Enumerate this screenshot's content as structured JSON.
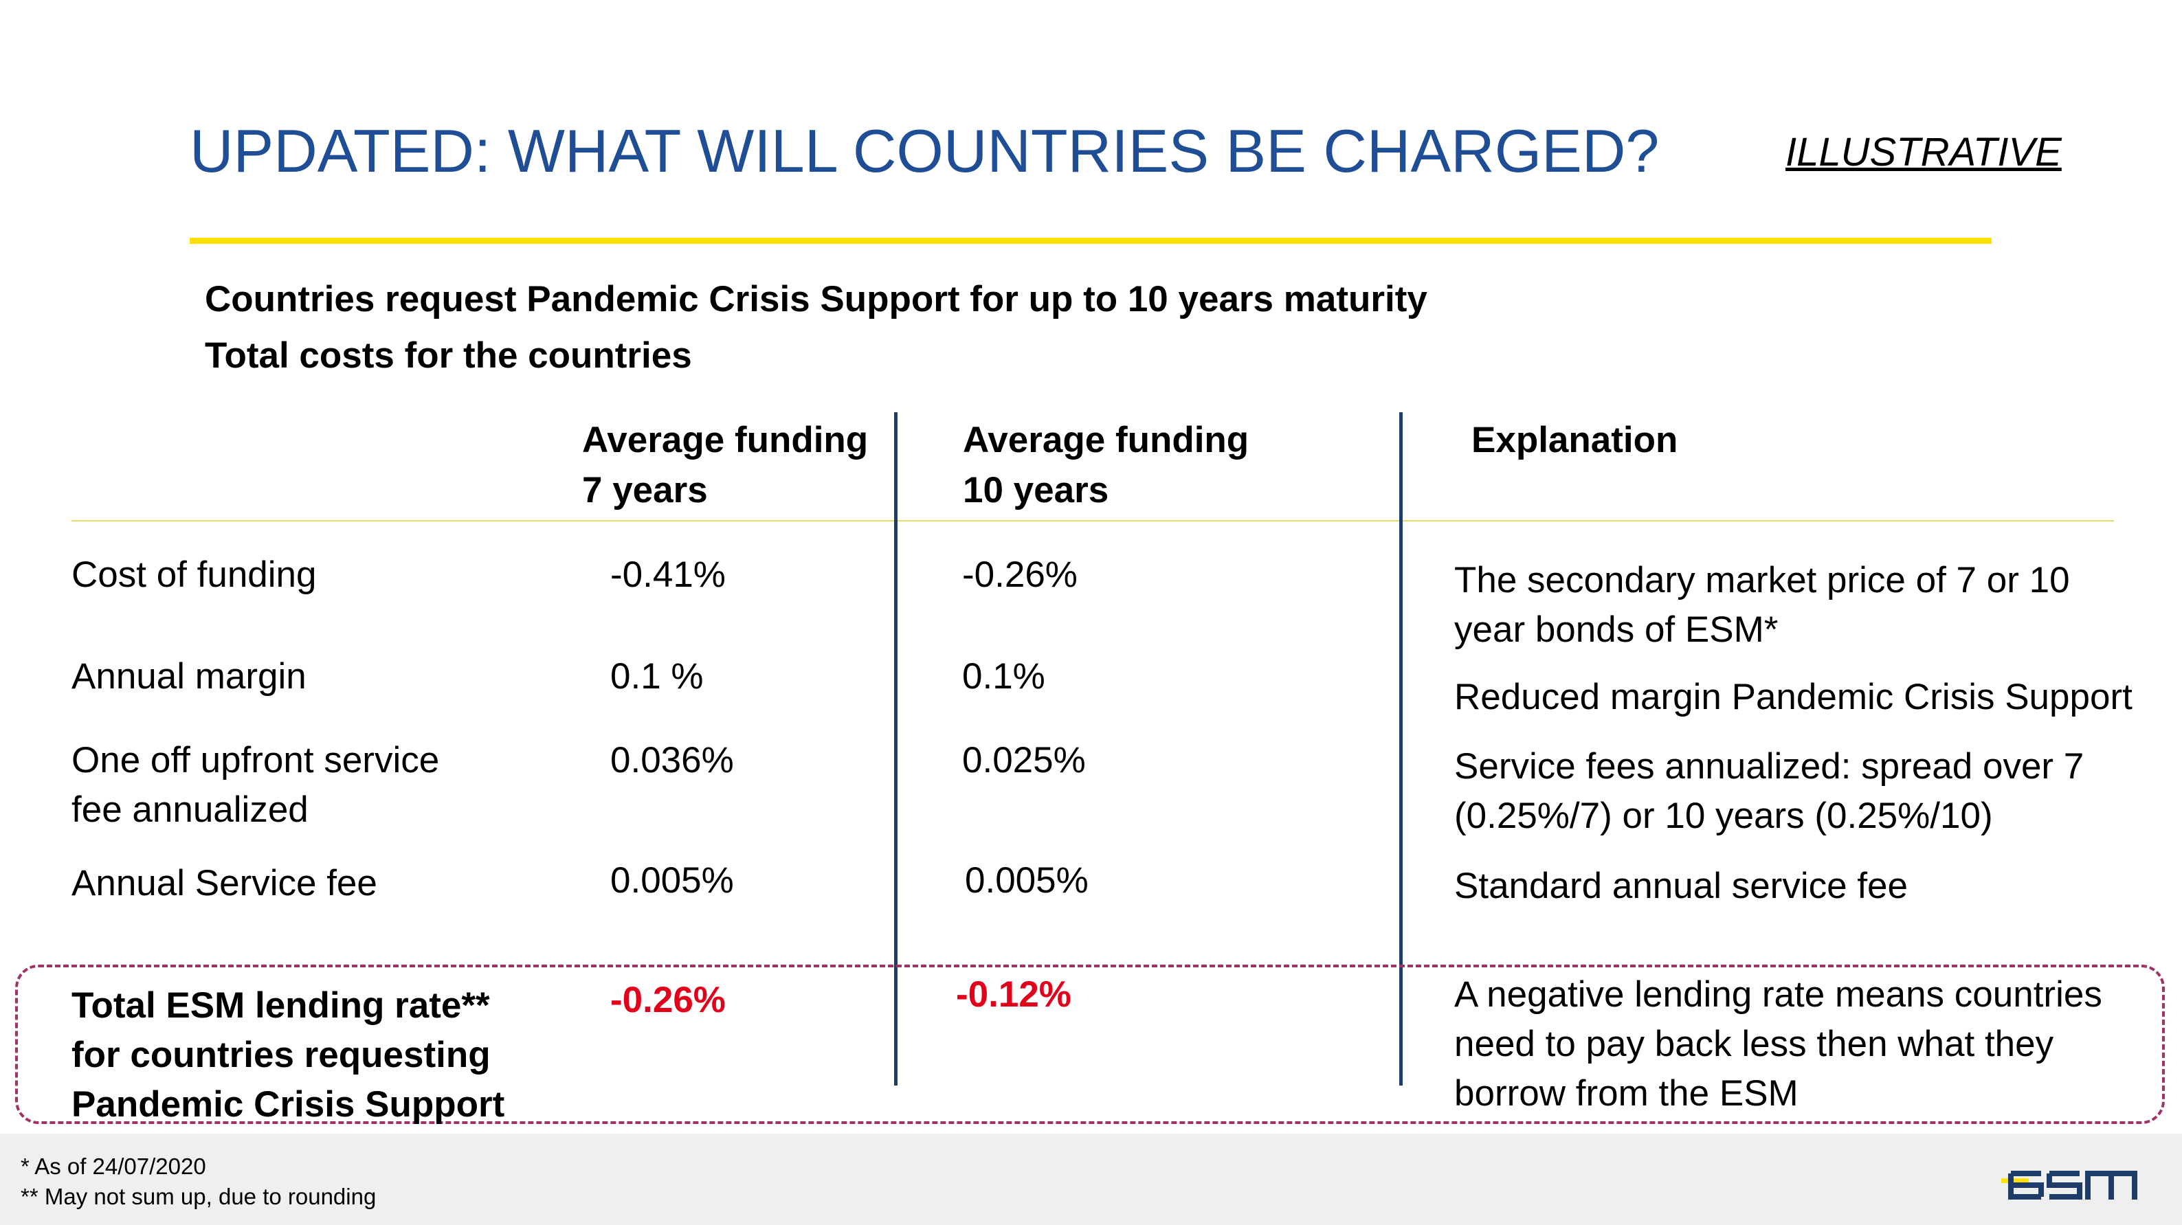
{
  "header": {
    "title": "UPDATED: WHAT WILL COUNTRIES BE CHARGED?",
    "tag": "ILLUSTRATIVE"
  },
  "intro": {
    "line1": "Countries request Pandemic Crisis Support for up to 10 years maturity",
    "line2": "Total costs for the countries"
  },
  "columns": {
    "col1": [
      "Average funding",
      "7 years"
    ],
    "col2": [
      "Average funding",
      "10 years"
    ],
    "col3": "Explanation"
  },
  "rows": [
    {
      "label": [
        "Cost of funding"
      ],
      "v7": "-0.41%",
      "v10": "-0.26%",
      "explanation": [
        "The secondary market price of 7 or 10",
        "year bonds of ESM*"
      ]
    },
    {
      "label": [
        "Annual margin"
      ],
      "v7": "0.1 %",
      "v10": "0.1%",
      "explanation": [
        "Reduced margin Pandemic Crisis Support"
      ]
    },
    {
      "label": [
        "One off upfront service",
        "fee annualized"
      ],
      "v7": "0.036%",
      "v10": "0.025%",
      "explanation": [
        "Service fees annualized: spread over 7",
        "(0.25%/7) or 10 years (0.25%/10)"
      ]
    },
    {
      "label": [
        "Annual Service fee"
      ],
      "v7": "0.005%",
      "v10": "0.005%",
      "explanation": [
        "Standard annual service fee"
      ]
    }
  ],
  "total": {
    "label": [
      "Total ESM lending rate**",
      "for countries requesting",
      "Pandemic Crisis Support"
    ],
    "v7": "-0.26%",
    "v10": "-0.12%",
    "explanation": [
      "A negative lending rate means countries",
      "need to pay back less then what they",
      "borrow from the ESM"
    ]
  },
  "footnotes": {
    "note1": "* As of 24/07/2020",
    "note2": "** May not sum up, due to rounding"
  },
  "logo": {
    "text": "esm",
    "icon": "esm-logo"
  },
  "colors": {
    "title": "#1f4e96",
    "accent_yellow": "#ffe000",
    "divider_blue": "#1f3d6b",
    "negative_red": "#e2001a",
    "box_dash": "#9e3466",
    "footer_bg": "#efefef"
  }
}
